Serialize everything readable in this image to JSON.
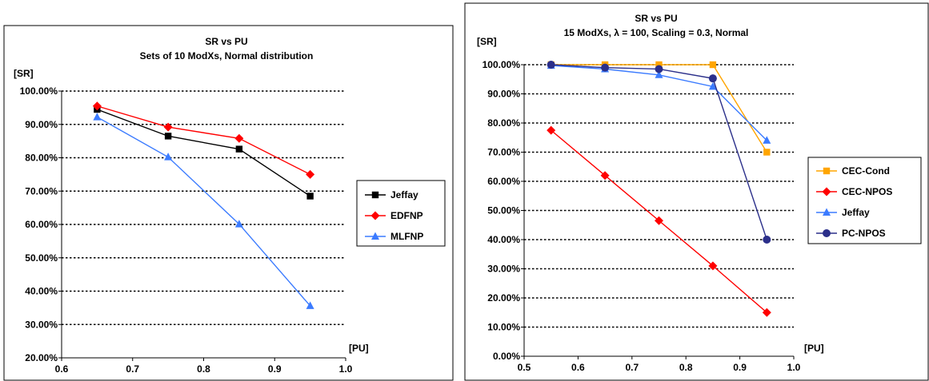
{
  "chart_data": [
    {
      "type": "line",
      "title": "SR  vs  PU",
      "subtitle": "Sets of 10 ModXs, Normal distribution",
      "ylabel": "[SR]",
      "xlabel": "[PU]",
      "xlim": [
        0.6,
        1.0
      ],
      "ylim": [
        0.2,
        1.0
      ],
      "xticks": [
        "0.6",
        "0.7",
        "0.8",
        "0.9",
        "1.0"
      ],
      "yticks": [
        "20.00%",
        "30.00%",
        "40.00%",
        "50.00%",
        "60.00%",
        "70.00%",
        "80.00%",
        "90.00%",
        "100.00%"
      ],
      "grid": "horizontal dotted",
      "legend": "right",
      "series": [
        {
          "name": "Jeffay",
          "color": "#000000",
          "marker": "square",
          "x": [
            0.65,
            0.75,
            0.85,
            0.95
          ],
          "y": [
            0.945,
            0.865,
            0.826,
            0.685
          ]
        },
        {
          "name": "EDFNP",
          "color": "#ff0000",
          "marker": "diamond",
          "x": [
            0.65,
            0.75,
            0.85,
            0.95
          ],
          "y": [
            0.955,
            0.892,
            0.858,
            0.75
          ]
        },
        {
          "name": "MLFNP",
          "color": "#3b7bff",
          "marker": "triangle",
          "x": [
            0.65,
            0.75,
            0.85,
            0.95
          ],
          "y": [
            0.922,
            0.802,
            0.601,
            0.356
          ]
        }
      ]
    },
    {
      "type": "line",
      "title": "SR  vs  PU",
      "subtitle": "15 ModXs, λ = 100, Scaling = 0.3, Normal",
      "ylabel": "[SR]",
      "xlabel": "[PU]",
      "xlim": [
        0.5,
        1.0
      ],
      "ylim": [
        0.0,
        1.0
      ],
      "xticks": [
        "0.5",
        "0.6",
        "0.7",
        "0.8",
        "0.9",
        "1.0"
      ],
      "yticks": [
        "0.00%",
        "10.00%",
        "20.00%",
        "30.00%",
        "40.00%",
        "50.00%",
        "60.00%",
        "70.00%",
        "80.00%",
        "90.00%",
        "100.00%"
      ],
      "grid": "horizontal dotted",
      "legend": "right",
      "series": [
        {
          "name": "CEC-Cond",
          "color": "#ffa500",
          "marker": "square",
          "x": [
            0.55,
            0.65,
            0.75,
            0.85,
            0.95
          ],
          "y": [
            1.0,
            1.0,
            1.0,
            1.0,
            0.7
          ]
        },
        {
          "name": "CEC-NPOS",
          "color": "#ff0000",
          "marker": "diamond",
          "x": [
            0.55,
            0.65,
            0.75,
            0.85,
            0.95
          ],
          "y": [
            0.775,
            0.62,
            0.465,
            0.31,
            0.15
          ]
        },
        {
          "name": "Jeffay",
          "color": "#3b7bff",
          "marker": "triangle",
          "x": [
            0.55,
            0.65,
            0.75,
            0.85,
            0.95
          ],
          "y": [
            0.997,
            0.985,
            0.965,
            0.925,
            0.74
          ]
        },
        {
          "name": "PC-NPOS",
          "color": "#2b2f8a",
          "marker": "circle",
          "x": [
            0.55,
            0.65,
            0.75,
            0.85,
            0.95
          ],
          "y": [
            1.0,
            0.99,
            0.985,
            0.953,
            0.4
          ]
        }
      ]
    }
  ]
}
